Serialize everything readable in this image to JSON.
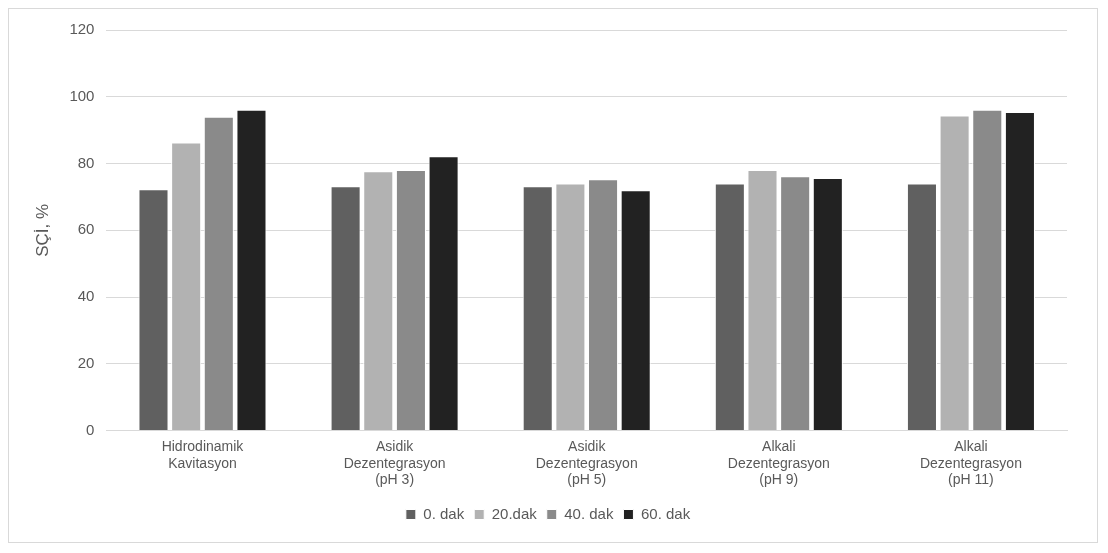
{
  "chart_data": {
    "type": "bar",
    "ylabel": "SÇİ, %",
    "categories": [
      "Hidrodinamik\nKavitasyon",
      "Asidik\nDezentegrasyon\n(pH 3)",
      "Asidik\nDezentegrasyon\n(pH 5)",
      "Alkali\nDezentegrasyon\n(pH 9)",
      "Alkali\nDezentegrasyon\n(pH 11)"
    ],
    "series": [
      {
        "name": "0. dak",
        "color": "#606060",
        "values": [
          72.3,
          73.2,
          73.2,
          74.0,
          74.0
        ]
      },
      {
        "name": "20.dak",
        "color": "#b2b2b2",
        "values": [
          86.3,
          77.7,
          74.0,
          78.1,
          94.4
        ]
      },
      {
        "name": "40. dak",
        "color": "#8a8a8a",
        "values": [
          94.0,
          78.1,
          75.3,
          76.2,
          96.1
        ]
      },
      {
        "name": "60. dak",
        "color": "#222222",
        "values": [
          96.1,
          82.2,
          72.0,
          75.7,
          95.4
        ]
      }
    ],
    "ylim": [
      0,
      120
    ],
    "yticks": [
      0,
      20,
      40,
      60,
      80,
      100,
      120
    ],
    "grid": "y",
    "legend": "bottom"
  }
}
